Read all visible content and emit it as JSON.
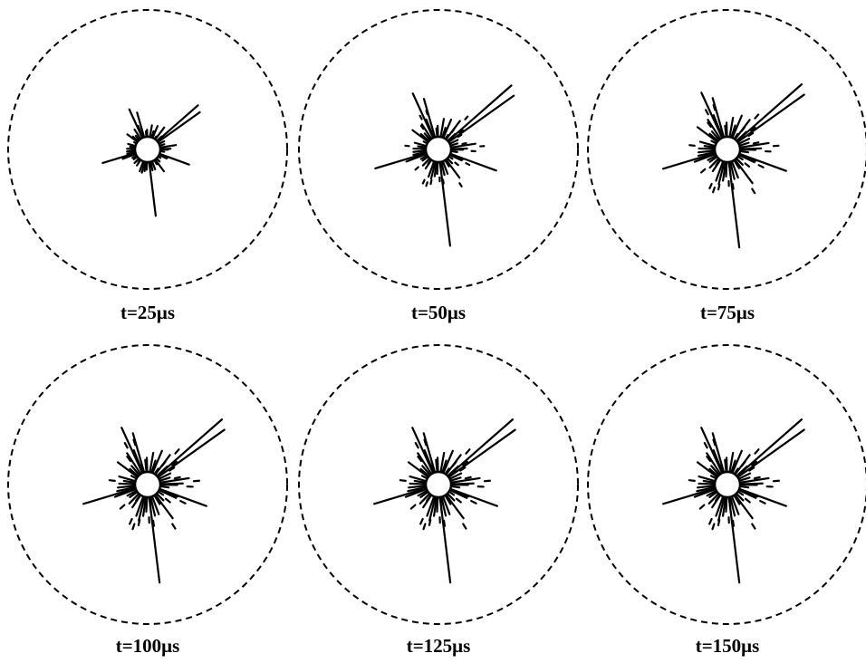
{
  "panels": [
    {
      "label": "t=25μs"
    },
    {
      "label": "t=50μs"
    },
    {
      "label": "t=75μs"
    },
    {
      "label": "t=100μs"
    },
    {
      "label": "t=125μs"
    },
    {
      "label": "t=150μs"
    }
  ]
}
